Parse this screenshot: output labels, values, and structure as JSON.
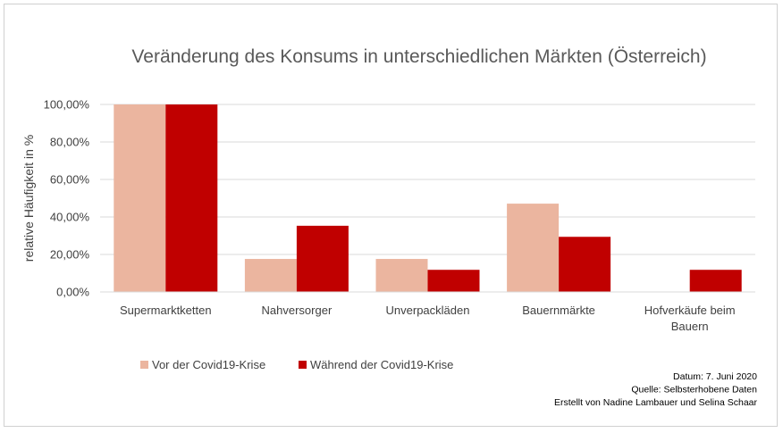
{
  "chart_data": {
    "type": "bar",
    "title": "Veränderung des Konsums in unterschiedlichen Märkten (Österreich)",
    "xlabel": "",
    "ylabel": "relative Häufigkeit in %",
    "categories": [
      [
        "Supermarktketten"
      ],
      [
        "Nahversorger"
      ],
      [
        "Unverpackläden"
      ],
      [
        "Bauernmärkte"
      ],
      [
        "Hofverkäufe beim",
        "Bauern"
      ]
    ],
    "series": [
      {
        "name": "Vor der Covid19-Krise",
        "color": "#ebb59f",
        "values": [
          100,
          17.6,
          17.6,
          47.1,
          0
        ]
      },
      {
        "name": "Während der Covid19-Krise",
        "color": "#c00000",
        "values": [
          100,
          35.3,
          11.8,
          29.4,
          11.8
        ]
      }
    ],
    "ylim": [
      0,
      100
    ],
    "yticks": [
      "0,00%",
      "20,00%",
      "40,00%",
      "60,00%",
      "80,00%",
      "100,00%"
    ],
    "grid": true,
    "legend_position": "bottom-left"
  },
  "notes": [
    "Datum: 7. Juni 2020",
    "Quelle: Selbsterhobene Daten",
    "Erstellt von Nadine Lambauer und Selina Schaar"
  ],
  "colors": {
    "grid": "#d9d9d9",
    "axis": "#d9d9d9"
  }
}
